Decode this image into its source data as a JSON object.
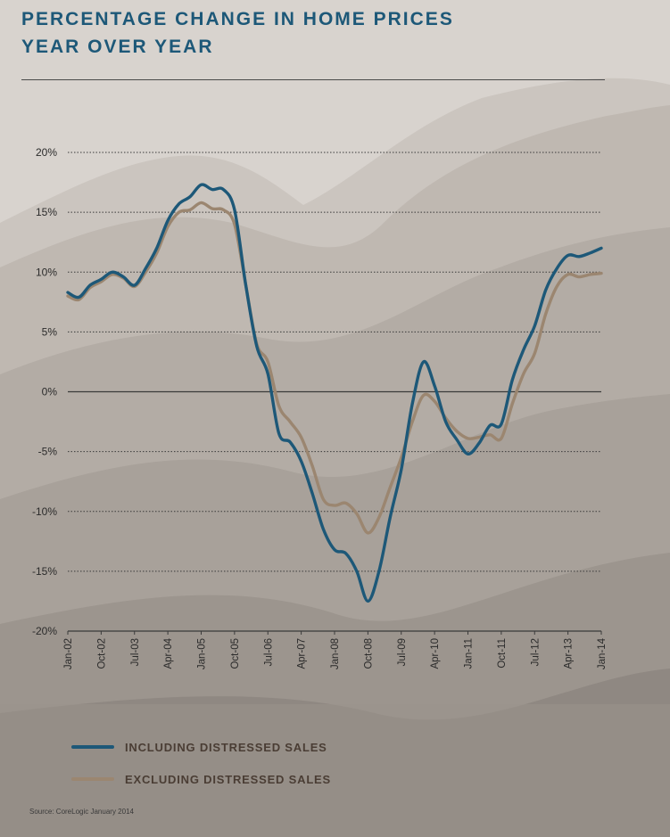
{
  "title": {
    "line1": "PERCENTAGE CHANGE IN HOME PRICES",
    "line2": "YEAR OVER YEAR"
  },
  "source": "Source: CoreLogic January 2014",
  "colors": {
    "title": "#1d5878",
    "including": "#1d5878",
    "excluding": "#9b8670",
    "grid": "#3a3a3a",
    "axis": "#3a3a3a"
  },
  "chart_data": {
    "type": "line",
    "title": "PERCENTAGE CHANGE IN HOME PRICES YEAR OVER YEAR",
    "xlabel": "",
    "ylabel": "",
    "ylim": [
      -20,
      20
    ],
    "y_ticks": [
      "20%",
      "15%",
      "10%",
      "5%",
      "0%",
      "-5%",
      "-10%",
      "-15%",
      "-20%"
    ],
    "y_tick_values": [
      20,
      15,
      10,
      5,
      0,
      -5,
      -10,
      -15,
      -20
    ],
    "x_ticks": [
      "Jan-02",
      "Oct-02",
      "Jul-03",
      "Apr-04",
      "Jan-05",
      "Oct-05",
      "Jul-06",
      "Apr-07",
      "Jan-08",
      "Oct-08",
      "Jul-09",
      "Apr-10",
      "Jan-11",
      "Oct-11",
      "Jul-12",
      "Apr-13",
      "Jan-14"
    ],
    "grid": "horizontal dotted",
    "legend_position": "bottom",
    "series": [
      {
        "name": "INCLUDING DISTRESSED SALES",
        "points": [
          [
            "Jan-02",
            8.3
          ],
          [
            "Apr-02",
            7.9
          ],
          [
            "Jul-02",
            8.9
          ],
          [
            "Oct-02",
            9.4
          ],
          [
            "Jan-03",
            10.0
          ],
          [
            "Apr-03",
            9.6
          ],
          [
            "Jul-03",
            8.9
          ],
          [
            "Oct-03",
            10.3
          ],
          [
            "Jan-04",
            12.0
          ],
          [
            "Apr-04",
            14.3
          ],
          [
            "Jul-04",
            15.7
          ],
          [
            "Oct-04",
            16.3
          ],
          [
            "Jan-05",
            17.3
          ],
          [
            "Apr-05",
            16.9
          ],
          [
            "Jul-05",
            16.9
          ],
          [
            "Oct-05",
            15.2
          ],
          [
            "Jan-06",
            9.0
          ],
          [
            "Apr-06",
            3.8
          ],
          [
            "Jul-06",
            1.5
          ],
          [
            "Oct-06",
            -3.5
          ],
          [
            "Jan-07",
            -4.2
          ],
          [
            "Apr-07",
            -5.8
          ],
          [
            "Jul-07",
            -8.5
          ],
          [
            "Oct-07",
            -11.5
          ],
          [
            "Jan-08",
            -13.2
          ],
          [
            "Apr-08",
            -13.5
          ],
          [
            "Jul-08",
            -15.0
          ],
          [
            "Oct-08",
            -17.5
          ],
          [
            "Jan-09",
            -15.0
          ],
          [
            "Apr-09",
            -10.5
          ],
          [
            "Jul-09",
            -6.5
          ],
          [
            "Oct-09",
            -1.0
          ],
          [
            "Jan-10",
            2.5
          ],
          [
            "Apr-10",
            0.5
          ],
          [
            "Jul-10",
            -2.5
          ],
          [
            "Oct-10",
            -4.0
          ],
          [
            "Jan-11",
            -5.2
          ],
          [
            "Apr-11",
            -4.3
          ],
          [
            "Jul-11",
            -2.8
          ],
          [
            "Oct-11",
            -2.7
          ],
          [
            "Jan-12",
            1.0
          ],
          [
            "Apr-12",
            3.5
          ],
          [
            "Jul-12",
            5.5
          ],
          [
            "Oct-12",
            8.5
          ],
          [
            "Jan-13",
            10.3
          ],
          [
            "Apr-13",
            11.4
          ],
          [
            "Jul-13",
            11.3
          ],
          [
            "Oct-13",
            11.6
          ],
          [
            "Jan-14",
            12.0
          ]
        ]
      },
      {
        "name": "EXCLUDING DISTRESSED SALES",
        "points": [
          [
            "Jan-02",
            8.0
          ],
          [
            "Apr-02",
            7.7
          ],
          [
            "Jul-02",
            8.7
          ],
          [
            "Oct-02",
            9.2
          ],
          [
            "Jan-03",
            9.8
          ],
          [
            "Apr-03",
            9.5
          ],
          [
            "Jul-03",
            8.8
          ],
          [
            "Oct-03",
            10.0
          ],
          [
            "Jan-04",
            11.6
          ],
          [
            "Apr-04",
            13.8
          ],
          [
            "Jul-04",
            15.0
          ],
          [
            "Oct-04",
            15.2
          ],
          [
            "Jan-05",
            15.8
          ],
          [
            "Apr-05",
            15.3
          ],
          [
            "Jul-05",
            15.2
          ],
          [
            "Oct-05",
            14.0
          ],
          [
            "Jan-06",
            9.0
          ],
          [
            "Apr-06",
            4.0
          ],
          [
            "Jul-06",
            2.5
          ],
          [
            "Oct-06",
            -1.2
          ],
          [
            "Jan-07",
            -2.5
          ],
          [
            "Apr-07",
            -3.8
          ],
          [
            "Jul-07",
            -6.2
          ],
          [
            "Oct-07",
            -9.0
          ],
          [
            "Jan-08",
            -9.5
          ],
          [
            "Apr-08",
            -9.3
          ],
          [
            "Jul-08",
            -10.2
          ],
          [
            "Oct-08",
            -11.8
          ],
          [
            "Jan-09",
            -10.5
          ],
          [
            "Apr-09",
            -8.0
          ],
          [
            "Jul-09",
            -5.5
          ],
          [
            "Oct-09",
            -2.5
          ],
          [
            "Jan-10",
            -0.3
          ],
          [
            "Apr-10",
            -0.8
          ],
          [
            "Jul-10",
            -2.2
          ],
          [
            "Oct-10",
            -3.3
          ],
          [
            "Jan-11",
            -3.9
          ],
          [
            "Apr-11",
            -3.8
          ],
          [
            "Jul-11",
            -3.6
          ],
          [
            "Oct-11",
            -3.9
          ],
          [
            "Jan-12",
            -1.0
          ],
          [
            "Apr-12",
            1.5
          ],
          [
            "Jul-12",
            3.2
          ],
          [
            "Oct-12",
            6.5
          ],
          [
            "Jan-13",
            8.8
          ],
          [
            "Apr-13",
            9.8
          ],
          [
            "Jul-13",
            9.6
          ],
          [
            "Oct-13",
            9.8
          ],
          [
            "Jan-14",
            9.9
          ]
        ]
      }
    ]
  }
}
